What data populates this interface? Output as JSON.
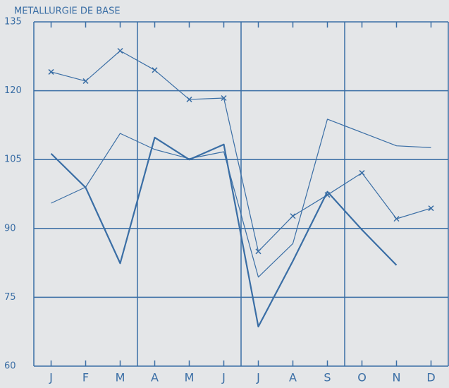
{
  "chart_data": {
    "type": "line",
    "title": "METALLURGIE DE BASE",
    "categories": [
      "J",
      "F",
      "M",
      "A",
      "M",
      "J",
      "J",
      "A",
      "S",
      "O",
      "N",
      "D"
    ],
    "series": [
      {
        "color": "#3a6ea5",
        "marker": "x",
        "width": 1.2,
        "values": [
          124.1,
          122.1,
          128.7,
          124.5,
          118.1,
          118.4,
          85.0,
          92.7,
          97.3,
          102.1,
          92.1,
          94.4
        ]
      },
      {
        "color": "#3a6ea5",
        "marker": "none",
        "width": 1.2,
        "values": [
          95.5,
          99.0,
          110.7,
          107.2,
          105.2,
          106.7,
          79.4,
          86.7,
          113.8,
          110.9,
          108.0,
          107.6
        ]
      },
      {
        "color": "#3a6ea5",
        "marker": "none",
        "width": 2.2,
        "values": [
          106.3,
          98.9,
          82.4,
          109.8,
          105.0,
          108.3,
          68.6,
          82.9,
          98.0,
          89.7,
          82.0,
          null
        ]
      }
    ],
    "ylim": [
      60,
      135
    ],
    "yticks": [
      60,
      75,
      90,
      105,
      120,
      135
    ],
    "grid": true
  }
}
